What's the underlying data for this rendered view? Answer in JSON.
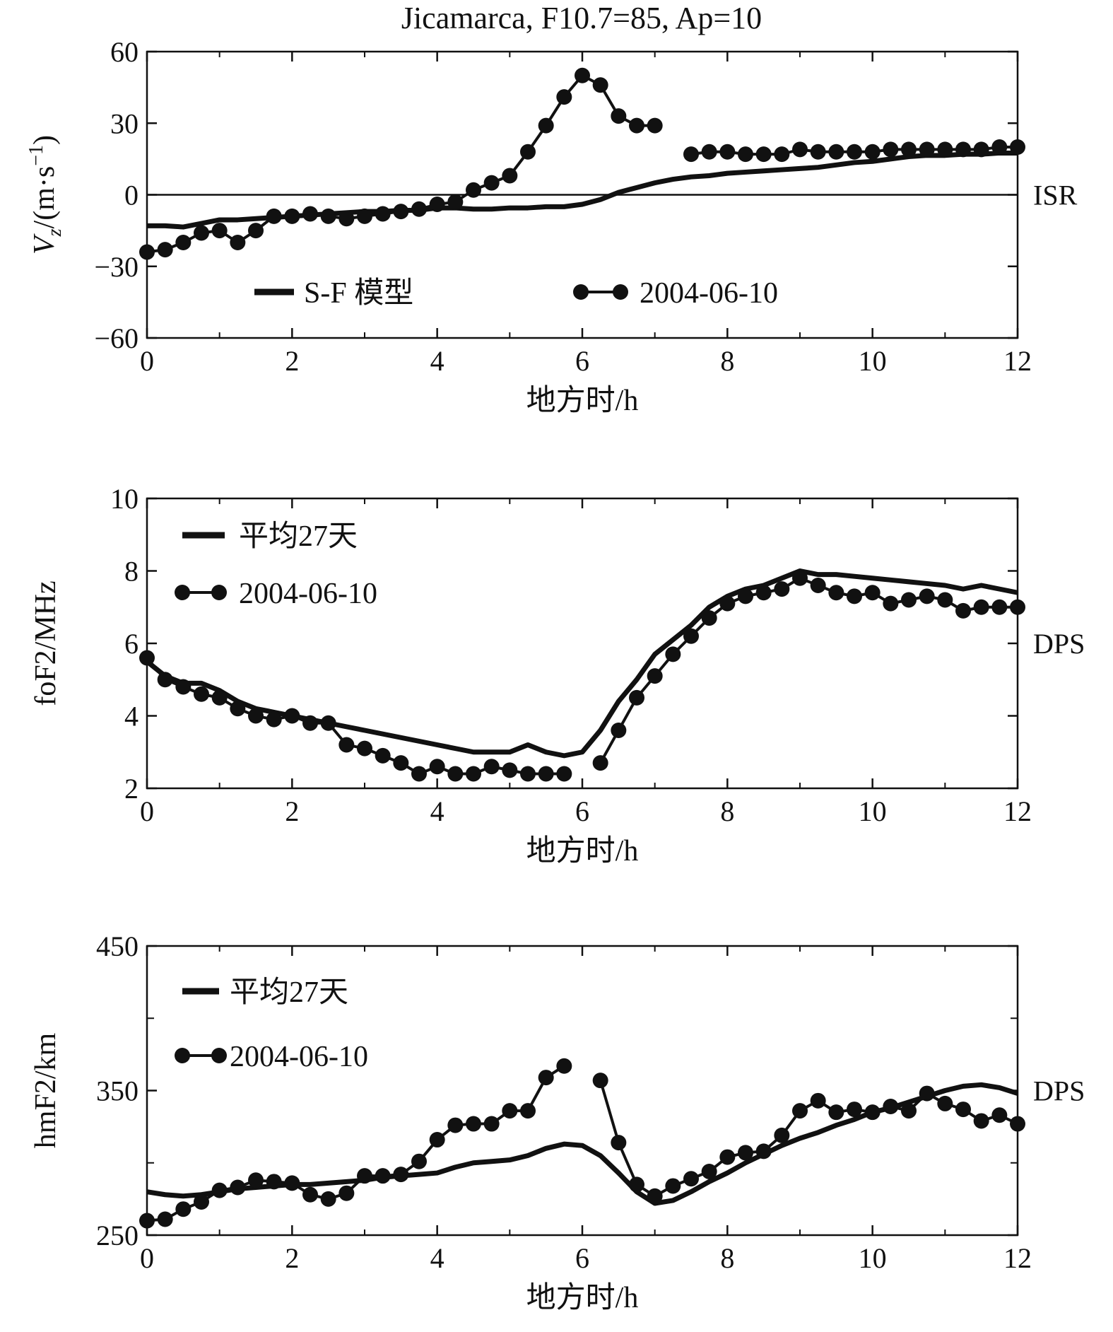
{
  "figure": {
    "title": "Jicamarca, F10.7=85, Ap=10"
  },
  "chart_data": [
    {
      "type": "line",
      "id": "vz",
      "ylabel": "V_z/(m·s⁻¹)",
      "ylabel_main": "V",
      "ylabel_sub": "z",
      "ylabel_rest": "/(m·s",
      "ylabel_sup": "−1",
      "ylabel_close": ")",
      "xlabel": "地方时/h",
      "xlim": [
        0,
        12
      ],
      "ylim": [
        -60,
        60
      ],
      "xticks": [
        0,
        2,
        4,
        6,
        8,
        10,
        12
      ],
      "yticks": [
        -60,
        -30,
        0,
        30,
        60
      ],
      "ytick_labels": [
        "−60",
        "−30",
        "0",
        "30",
        "60"
      ],
      "zero_line": true,
      "source_label": "ISR",
      "legend_layout": "row",
      "series": [
        {
          "name": "S-F 模型",
          "style": "thick-line",
          "x": [
            0,
            0.25,
            0.5,
            0.75,
            1,
            1.25,
            1.5,
            1.75,
            2,
            2.25,
            2.5,
            2.75,
            3,
            3.25,
            3.5,
            3.75,
            4,
            4.25,
            4.5,
            4.75,
            5,
            5.25,
            5.5,
            5.75,
            6,
            6.25,
            6.5,
            6.75,
            7,
            7.25,
            7.5,
            7.75,
            8,
            8.25,
            8.5,
            8.75,
            9,
            9.25,
            9.5,
            9.75,
            10,
            10.25,
            10.5,
            10.75,
            11,
            11.25,
            11.5,
            11.75,
            12
          ],
          "y": [
            -13,
            -13,
            -13.5,
            -12,
            -10.5,
            -10.5,
            -10,
            -9.5,
            -9,
            -8.5,
            -8,
            -7.5,
            -7,
            -7,
            -6.5,
            -6.5,
            -5.5,
            -5.5,
            -6,
            -6,
            -5.5,
            -5.5,
            -5,
            -5,
            -4,
            -2,
            1,
            3,
            5,
            6.5,
            7.5,
            8,
            9,
            9.5,
            10,
            10.5,
            11,
            11.5,
            12.5,
            13.5,
            14,
            15,
            16,
            16.5,
            16.5,
            17,
            17,
            17.5,
            17.5
          ]
        },
        {
          "name": "2004-06-10",
          "style": "line-dots",
          "segments": [
            {
              "x": [
                0,
                0.25,
                0.5,
                0.75,
                1,
                1.25,
                1.5,
                1.75,
                2,
                2.25,
                2.5,
                2.75,
                3,
                3.25,
                3.5,
                3.75,
                4,
                4.25,
                4.5,
                4.75,
                5,
                5.25,
                5.5,
                5.75,
                6,
                6.25,
                6.5,
                6.75,
                7
              ],
              "y": [
                -24,
                -23,
                -20,
                -16,
                -15,
                -20,
                -15,
                -9,
                -9,
                -8,
                -9,
                -10,
                -9,
                -8,
                -7,
                -6,
                -4,
                -3,
                2,
                5,
                8,
                18,
                29,
                41,
                50,
                46,
                33,
                29,
                29
              ]
            },
            {
              "x": [
                7.5,
                7.75,
                8,
                8.25,
                8.5,
                8.75,
                9,
                9.25,
                9.5,
                9.75,
                10,
                10.25,
                10.5,
                10.75,
                11,
                11.25,
                11.5,
                11.75,
                12
              ],
              "y": [
                17,
                18,
                18,
                17,
                17,
                17,
                19,
                18,
                18,
                18,
                18,
                19,
                19,
                19,
                19,
                19,
                19,
                20,
                20
              ]
            }
          ]
        }
      ]
    },
    {
      "type": "line",
      "id": "foF2",
      "ylabel": "foF2/MHz",
      "xlabel": "地方时/h",
      "xlim": [
        0,
        12
      ],
      "ylim": [
        2,
        10
      ],
      "xticks": [
        0,
        2,
        4,
        6,
        8,
        10,
        12
      ],
      "yticks": [
        2,
        4,
        6,
        8,
        10
      ],
      "ytick_labels": [
        "2",
        "4",
        "6",
        "8",
        "10"
      ],
      "zero_line": false,
      "source_label": "DPS",
      "legend_layout": "column",
      "series": [
        {
          "name": "平均27天",
          "style": "thick-line",
          "x": [
            0,
            0.25,
            0.5,
            0.75,
            1,
            1.25,
            1.5,
            1.75,
            2,
            2.25,
            2.5,
            2.75,
            3,
            3.25,
            3.5,
            3.75,
            4,
            4.25,
            4.5,
            4.75,
            5,
            5.25,
            5.5,
            5.75,
            6,
            6.25,
            6.5,
            6.75,
            7,
            7.25,
            7.5,
            7.75,
            8,
            8.25,
            8.5,
            8.75,
            9,
            9.25,
            9.5,
            9.75,
            10,
            10.25,
            10.5,
            10.75,
            11,
            11.25,
            11.5,
            11.75,
            12
          ],
          "y": [
            5.5,
            5.1,
            4.9,
            4.9,
            4.7,
            4.4,
            4.2,
            4.1,
            4.0,
            3.9,
            3.8,
            3.7,
            3.6,
            3.5,
            3.4,
            3.3,
            3.2,
            3.1,
            3.0,
            3.0,
            3.0,
            3.2,
            3.0,
            2.9,
            3.0,
            3.6,
            4.4,
            5.0,
            5.7,
            6.1,
            6.5,
            7.0,
            7.3,
            7.5,
            7.6,
            7.8,
            8.0,
            7.9,
            7.9,
            7.85,
            7.8,
            7.75,
            7.7,
            7.65,
            7.6,
            7.5,
            7.6,
            7.5,
            7.4
          ]
        },
        {
          "name": "2004-06-10",
          "style": "line-dots",
          "segments": [
            {
              "x": [
                0,
                0.25,
                0.5,
                0.75,
                1,
                1.25,
                1.5,
                1.75,
                2,
                2.25,
                2.5,
                2.75,
                3,
                3.25,
                3.5,
                3.75,
                4,
                4.25,
                4.5,
                4.75,
                5,
                5.25,
                5.5,
                5.75
              ],
              "y": [
                5.6,
                5.0,
                4.8,
                4.6,
                4.5,
                4.2,
                4.0,
                3.9,
                4.0,
                3.8,
                3.8,
                3.2,
                3.1,
                2.9,
                2.7,
                2.4,
                2.6,
                2.4,
                2.4,
                2.6,
                2.5,
                2.4,
                2.4,
                2.4
              ]
            },
            {
              "x": [
                6.25,
                6.5,
                6.75,
                7,
                7.25,
                7.5,
                7.75,
                8,
                8.25,
                8.5,
                8.75,
                9,
                9.25,
                9.5,
                9.75,
                10,
                10.25,
                10.5,
                10.75,
                11,
                11.25,
                11.5,
                11.75,
                12
              ],
              "y": [
                2.7,
                3.6,
                4.5,
                5.1,
                5.7,
                6.2,
                6.7,
                7.1,
                7.3,
                7.4,
                7.5,
                7.8,
                7.6,
                7.4,
                7.3,
                7.4,
                7.1,
                7.2,
                7.3,
                7.2,
                6.9,
                7.0,
                7.0,
                7.0
              ]
            }
          ]
        }
      ]
    },
    {
      "type": "line",
      "id": "hmF2",
      "ylabel": "hmF2/km",
      "xlabel": "地方时/h",
      "xlim": [
        0,
        12
      ],
      "ylim": [
        250,
        450
      ],
      "xticks": [
        0,
        2,
        4,
        6,
        8,
        10,
        12
      ],
      "yticks": [
        250,
        350,
        450
      ],
      "ytick_labels": [
        "250",
        "350",
        "450"
      ],
      "yminor": [
        300,
        400
      ],
      "zero_line": false,
      "source_label": "DPS",
      "legend_layout": "column",
      "series": [
        {
          "name": "平均27天",
          "style": "thick-line",
          "x": [
            0,
            0.25,
            0.5,
            0.75,
            1,
            1.25,
            1.5,
            1.75,
            2,
            2.25,
            2.5,
            2.75,
            3,
            3.25,
            3.5,
            3.75,
            4,
            4.25,
            4.5,
            4.75,
            5,
            5.25,
            5.5,
            5.75,
            6,
            6.25,
            6.5,
            6.75,
            7,
            7.25,
            7.5,
            7.75,
            8,
            8.25,
            8.5,
            8.75,
            9,
            9.25,
            9.5,
            9.75,
            10,
            10.25,
            10.5,
            10.75,
            11,
            11.25,
            11.5,
            11.75,
            12
          ],
          "y": [
            280,
            278,
            277,
            278,
            280,
            282,
            283,
            284,
            285,
            285,
            286,
            287,
            288,
            290,
            291,
            292,
            293,
            297,
            300,
            301,
            302,
            305,
            310,
            313,
            312,
            305,
            293,
            280,
            272,
            274,
            280,
            287,
            293,
            300,
            306,
            312,
            317,
            321,
            326,
            330,
            335,
            338,
            342,
            346,
            350,
            353,
            354,
            352,
            348
          ]
        },
        {
          "name": "2004-06-10",
          "style": "line-dots",
          "segments": [
            {
              "x": [
                0,
                0.25,
                0.5,
                0.75,
                1,
                1.25,
                1.5,
                1.75,
                2,
                2.25,
                2.5,
                2.75,
                3,
                3.25,
                3.5,
                3.75,
                4,
                4.25,
                4.5,
                4.75,
                5,
                5.25,
                5.5,
                5.75
              ],
              "y": [
                260,
                261,
                268,
                273,
                281,
                283,
                288,
                287,
                286,
                278,
                275,
                279,
                291,
                291,
                292,
                301,
                316,
                326,
                327,
                327,
                336,
                336,
                359,
                367
              ]
            },
            {
              "x": [
                6.25,
                6.5,
                6.75,
                7,
                7.25,
                7.5,
                7.75,
                8,
                8.25,
                8.5,
                8.75,
                9,
                9.25,
                9.5,
                9.75,
                10,
                10.25,
                10.5,
                10.75,
                11,
                11.25,
                11.5,
                11.75,
                12
              ],
              "y": [
                357,
                314,
                285,
                277,
                284,
                289,
                294,
                304,
                307,
                308,
                319,
                336,
                343,
                335,
                337,
                335,
                339,
                336,
                348,
                341,
                337,
                329,
                333,
                327
              ]
            }
          ]
        }
      ]
    }
  ]
}
